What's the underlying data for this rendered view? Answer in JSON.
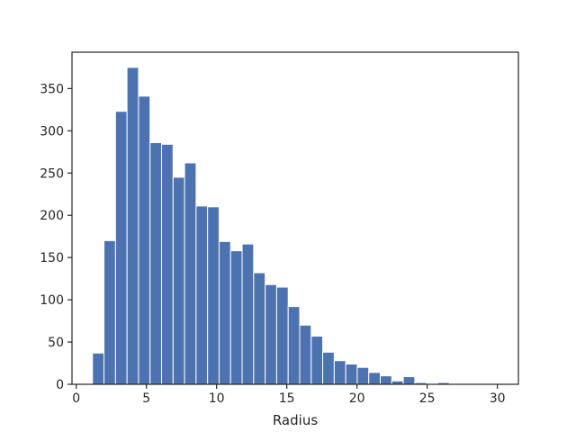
{
  "chart_data": {
    "type": "bar",
    "xlabel": "Radius",
    "ylabel": "",
    "title": "",
    "bar_color": "#4c72b0",
    "edge_color": "#ffffff",
    "bin_width": 0.82,
    "bins": [
      {
        "x0": 1.16,
        "count": 37
      },
      {
        "x0": 1.98,
        "count": 170
      },
      {
        "x0": 2.8,
        "count": 323
      },
      {
        "x0": 3.62,
        "count": 375
      },
      {
        "x0": 4.44,
        "count": 341
      },
      {
        "x0": 5.26,
        "count": 286
      },
      {
        "x0": 6.08,
        "count": 284
      },
      {
        "x0": 6.9,
        "count": 245
      },
      {
        "x0": 7.72,
        "count": 262
      },
      {
        "x0": 8.54,
        "count": 211
      },
      {
        "x0": 9.36,
        "count": 210
      },
      {
        "x0": 10.18,
        "count": 169
      },
      {
        "x0": 11.0,
        "count": 158
      },
      {
        "x0": 11.82,
        "count": 166
      },
      {
        "x0": 12.64,
        "count": 132
      },
      {
        "x0": 13.46,
        "count": 118
      },
      {
        "x0": 14.28,
        "count": 115
      },
      {
        "x0": 15.1,
        "count": 92
      },
      {
        "x0": 15.92,
        "count": 70
      },
      {
        "x0": 16.74,
        "count": 57
      },
      {
        "x0": 17.56,
        "count": 38
      },
      {
        "x0": 18.38,
        "count": 28
      },
      {
        "x0": 19.2,
        "count": 24
      },
      {
        "x0": 20.02,
        "count": 20
      },
      {
        "x0": 20.84,
        "count": 14
      },
      {
        "x0": 21.66,
        "count": 10
      },
      {
        "x0": 22.48,
        "count": 4
      },
      {
        "x0": 23.3,
        "count": 9
      },
      {
        "x0": 24.12,
        "count": 2
      },
      {
        "x0": 24.94,
        "count": 0
      },
      {
        "x0": 25.76,
        "count": 2
      },
      {
        "x0": 26.58,
        "count": 0
      },
      {
        "x0": 27.4,
        "count": 0
      },
      {
        "x0": 28.22,
        "count": 0
      },
      {
        "x0": 29.04,
        "count": 1
      },
      {
        "x0": 29.86,
        "count": 1
      }
    ],
    "xlim": [
      -0.3,
      31.5
    ],
    "ylim": [
      0,
      393
    ],
    "xticks": [
      0,
      5,
      10,
      15,
      20,
      25,
      30
    ],
    "yticks": [
      0,
      50,
      100,
      150,
      200,
      250,
      300,
      350
    ],
    "grid": false,
    "legend": "none"
  }
}
